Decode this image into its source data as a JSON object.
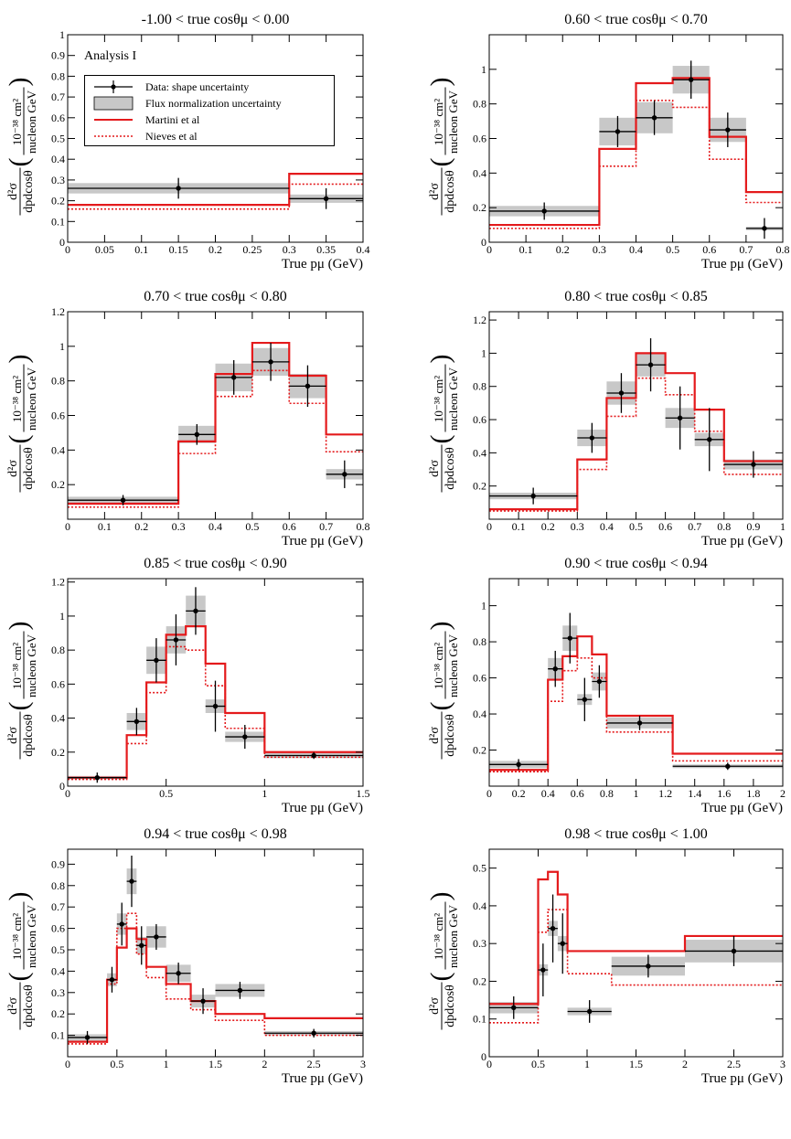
{
  "annotation": "Analysis I",
  "ylabel_numerator": "d²σ",
  "ylabel_denominator": "dpdcosθ",
  "ylabel_unit_top": "10⁻³⁸ cm²",
  "ylabel_unit_bottom": "nucleon GeV",
  "xlabel": "True pμ (GeV)",
  "legend": [
    {
      "label": "Data: shape uncertainty",
      "symbol": "data"
    },
    {
      "label": "Flux normalization uncertainty",
      "symbol": "band"
    },
    {
      "label": "Martini et al",
      "symbol": "solid-red"
    },
    {
      "label": "Nieves et al",
      "symbol": "dashed-red"
    }
  ],
  "colors": {
    "martini": "#e41a1c",
    "nieves": "#e41a1c",
    "band": "#c8c8c8",
    "data": "#000000"
  },
  "chart_data": [
    {
      "type": "line",
      "title": "-1.00 < true cosθμ < 0.00",
      "xlim": [
        0,
        0.4
      ],
      "ylim": [
        0,
        1.0
      ],
      "xticks": [
        0,
        0.05,
        0.1,
        0.15,
        0.2,
        0.25,
        0.3,
        0.35,
        0.4
      ],
      "xticklabels": [
        "0",
        "0.05",
        "0.1",
        "0.15",
        "0.2",
        "0.25",
        "0.3",
        "0.35",
        "0.4"
      ],
      "yticks": [
        0,
        0.1,
        0.2,
        0.3,
        0.4,
        0.5,
        0.6,
        0.7,
        0.8,
        0.9,
        1
      ],
      "yticklabels": [
        "0",
        "0.1",
        "0.2",
        "0.3",
        "0.4",
        "0.5",
        "0.6",
        "0.7",
        "0.8",
        "0.9",
        "1"
      ],
      "bins": [
        0,
        0.3,
        0.4
      ],
      "data": [
        0.26,
        0.21
      ],
      "data_err": [
        0.05,
        0.05
      ],
      "flux_band": [
        0.025,
        0.02
      ],
      "martini": [
        0.18,
        0.33
      ],
      "nieves": [
        0.16,
        0.28
      ]
    },
    {
      "type": "line",
      "title": "0.60 < true cosθμ < 0.70",
      "xlim": [
        0,
        0.8
      ],
      "ylim": [
        0,
        1.2
      ],
      "xticks": [
        0,
        0.1,
        0.2,
        0.3,
        0.4,
        0.5,
        0.6,
        0.7,
        0.8
      ],
      "xticklabels": [
        "0",
        "0.1",
        "0.2",
        "0.3",
        "0.4",
        "0.5",
        "0.6",
        "0.7",
        "0.8"
      ],
      "yticks": [
        0,
        0.2,
        0.4,
        0.6,
        0.8,
        1
      ],
      "yticklabels": [
        "0",
        "0.2",
        "0.4",
        "0.6",
        "0.8",
        "1"
      ],
      "bins": [
        0,
        0.3,
        0.4,
        0.5,
        0.6,
        0.7,
        0.8
      ],
      "data": [
        0.18,
        0.64,
        0.72,
        0.94,
        0.65,
        0.08
      ],
      "data_err": [
        0.05,
        0.09,
        0.1,
        0.11,
        0.1,
        0.06
      ],
      "flux_band": [
        0.03,
        0.08,
        0.09,
        0.08,
        0.07,
        0.01
      ],
      "martini": [
        0.1,
        0.54,
        0.92,
        0.95,
        0.61,
        0.29
      ],
      "nieves": [
        0.08,
        0.44,
        0.82,
        0.78,
        0.48,
        0.23
      ]
    },
    {
      "type": "line",
      "title": "0.70 < true cosθμ < 0.80",
      "xlim": [
        0,
        0.8
      ],
      "ylim": [
        0,
        1.2
      ],
      "xticks": [
        0,
        0.1,
        0.2,
        0.3,
        0.4,
        0.5,
        0.6,
        0.7,
        0.8
      ],
      "xticklabels": [
        "0",
        "0.1",
        "0.2",
        "0.3",
        "0.4",
        "0.5",
        "0.6",
        "0.7",
        "0.8"
      ],
      "yticks": [
        0.2,
        0.4,
        0.6,
        0.8,
        1,
        1.2
      ],
      "yticklabels": [
        "0.2",
        "0.4",
        "0.6",
        "0.8",
        "1",
        "1.2"
      ],
      "bins": [
        0,
        0.3,
        0.4,
        0.5,
        0.6,
        0.7,
        0.8
      ],
      "data": [
        0.11,
        0.49,
        0.82,
        0.91,
        0.77,
        0.26
      ],
      "data_err": [
        0.03,
        0.06,
        0.1,
        0.11,
        0.12,
        0.08
      ],
      "flux_band": [
        0.02,
        0.05,
        0.08,
        0.08,
        0.07,
        0.03
      ],
      "martini": [
        0.09,
        0.45,
        0.84,
        1.02,
        0.83,
        0.49
      ],
      "nieves": [
        0.07,
        0.38,
        0.71,
        0.86,
        0.67,
        0.39
      ]
    },
    {
      "type": "line",
      "title": "0.80 < true cosθμ < 0.85",
      "xlim": [
        0,
        1.0
      ],
      "ylim": [
        0,
        1.25
      ],
      "xticks": [
        0,
        0.1,
        0.2,
        0.3,
        0.4,
        0.5,
        0.6,
        0.7,
        0.8,
        0.9,
        1
      ],
      "xticklabels": [
        "0",
        "0.1",
        "0.2",
        "0.3",
        "0.4",
        "0.5",
        "0.6",
        "0.7",
        "0.8",
        "0.9",
        "1"
      ],
      "yticks": [
        0.2,
        0.4,
        0.6,
        0.8,
        1,
        1.2
      ],
      "yticklabels": [
        "0.2",
        "0.4",
        "0.6",
        "0.8",
        "1",
        "1.2"
      ],
      "bins": [
        0,
        0.3,
        0.4,
        0.5,
        0.6,
        0.7,
        0.8,
        1.0
      ],
      "data": [
        0.14,
        0.49,
        0.76,
        0.93,
        0.61,
        0.48,
        0.33
      ],
      "data_err": [
        0.05,
        0.09,
        0.12,
        0.16,
        0.19,
        0.19,
        0.08
      ],
      "flux_band": [
        0.02,
        0.05,
        0.07,
        0.07,
        0.06,
        0.04,
        0.03
      ],
      "martini": [
        0.06,
        0.36,
        0.73,
        1.0,
        0.88,
        0.66,
        0.35
      ],
      "nieves": [
        0.05,
        0.3,
        0.62,
        0.85,
        0.75,
        0.53,
        0.27
      ]
    },
    {
      "type": "line",
      "title": "0.85 < true cosθμ < 0.90",
      "xlim": [
        0,
        1.5
      ],
      "ylim": [
        0,
        1.22
      ],
      "xticks": [
        0,
        0.5,
        1,
        1.5
      ],
      "xticklabels": [
        "0",
        "0.5",
        "1",
        "1.5"
      ],
      "yticks": [
        0,
        0.2,
        0.4,
        0.6,
        0.8,
        1,
        1.2
      ],
      "yticklabels": [
        "0",
        "0.2",
        "0.4",
        "0.6",
        "0.8",
        "1",
        "1.2"
      ],
      "bins": [
        0,
        0.3,
        0.4,
        0.5,
        0.6,
        0.7,
        0.8,
        1.0,
        1.5
      ],
      "data": [
        0.05,
        0.38,
        0.74,
        0.86,
        1.03,
        0.47,
        0.29,
        0.18
      ],
      "data_err": [
        0.03,
        0.08,
        0.13,
        0.15,
        0.14,
        0.15,
        0.07,
        0.02
      ],
      "flux_band": [
        0.01,
        0.05,
        0.08,
        0.08,
        0.09,
        0.04,
        0.03,
        0.015
      ],
      "martini": [
        0.05,
        0.3,
        0.61,
        0.89,
        0.94,
        0.72,
        0.43,
        0.2
      ],
      "nieves": [
        0.04,
        0.25,
        0.55,
        0.82,
        0.8,
        0.59,
        0.34,
        0.17
      ]
    },
    {
      "type": "line",
      "title": "0.90 < true cosθμ < 0.94",
      "xlim": [
        0,
        2.0
      ],
      "ylim": [
        0,
        1.15
      ],
      "xticks": [
        0,
        0.2,
        0.4,
        0.6,
        0.8,
        1,
        1.2,
        1.4,
        1.6,
        1.8,
        2
      ],
      "xticklabels": [
        "0",
        "0.2",
        "0.4",
        "0.6",
        "0.8",
        "1",
        "1.2",
        "1.4",
        "1.6",
        "1.8",
        "2"
      ],
      "yticks": [
        0.2,
        0.4,
        0.6,
        0.8,
        1
      ],
      "yticklabels": [
        "0.2",
        "0.4",
        "0.6",
        "0.8",
        "1"
      ],
      "bins": [
        0,
        0.4,
        0.5,
        0.6,
        0.7,
        0.8,
        1.25,
        2.0
      ],
      "data": [
        0.12,
        0.65,
        0.82,
        0.48,
        0.58,
        0.35,
        0.11
      ],
      "data_err": [
        0.03,
        0.1,
        0.14,
        0.12,
        0.09,
        0.04,
        0.02
      ],
      "flux_band": [
        0.02,
        0.06,
        0.07,
        0.03,
        0.05,
        0.03,
        0.01
      ],
      "martini": [
        0.09,
        0.59,
        0.72,
        0.83,
        0.73,
        0.39,
        0.18
      ],
      "nieves": [
        0.08,
        0.47,
        0.64,
        0.71,
        0.6,
        0.3,
        0.14
      ]
    },
    {
      "type": "line",
      "title": "0.94 < true cosθμ < 0.98",
      "xlim": [
        0,
        3.0
      ],
      "ylim": [
        0,
        0.97
      ],
      "xticks": [
        0,
        0.5,
        1,
        1.5,
        2,
        2.5,
        3
      ],
      "xticklabels": [
        "0",
        "0.5",
        "1",
        "1.5",
        "2",
        "2.5",
        "3"
      ],
      "yticks": [
        0.1,
        0.2,
        0.3,
        0.4,
        0.5,
        0.6,
        0.7,
        0.8,
        0.9
      ],
      "yticklabels": [
        "0.1",
        "0.2",
        "0.3",
        "0.4",
        "0.5",
        "0.6",
        "0.7",
        "0.8",
        "0.9"
      ],
      "bins": [
        0,
        0.4,
        0.5,
        0.6,
        0.7,
        0.8,
        1.0,
        1.25,
        1.5,
        2.0,
        3.0
      ],
      "data": [
        0.09,
        0.36,
        0.62,
        0.82,
        0.52,
        0.56,
        0.39,
        0.26,
        0.31,
        0.11
      ],
      "data_err": [
        0.03,
        0.06,
        0.1,
        0.12,
        0.09,
        0.06,
        0.05,
        0.06,
        0.04,
        0.02
      ],
      "flux_band": [
        0.015,
        0.03,
        0.05,
        0.06,
        0.04,
        0.05,
        0.04,
        0.03,
        0.03,
        0.01
      ],
      "martini": [
        0.07,
        0.36,
        0.51,
        0.6,
        0.55,
        0.42,
        0.34,
        0.26,
        0.2,
        0.18
      ],
      "nieves": [
        0.06,
        0.34,
        0.6,
        0.67,
        0.48,
        0.37,
        0.27,
        0.22,
        0.17,
        0.1
      ]
    },
    {
      "type": "line",
      "title": "0.98 < true cosθμ < 1.00",
      "xlim": [
        0,
        3.0
      ],
      "ylim": [
        0,
        0.55
      ],
      "xticks": [
        0,
        0.5,
        1,
        1.5,
        2,
        2.5,
        3
      ],
      "xticklabels": [
        "0",
        "0.5",
        "1",
        "1.5",
        "2",
        "2.5",
        "3"
      ],
      "yticks": [
        0,
        0.1,
        0.2,
        0.3,
        0.4,
        0.5
      ],
      "yticklabels": [
        "0",
        "0.1",
        "0.2",
        "0.3",
        "0.4",
        "0.5"
      ],
      "bins": [
        0,
        0.5,
        0.6,
        0.7,
        0.8,
        1.25,
        2.0,
        3.0
      ],
      "data": [
        0.13,
        0.23,
        0.34,
        0.3,
        0.12,
        0.24,
        0.28
      ],
      "data_err": [
        0.03,
        0.07,
        0.09,
        0.08,
        0.03,
        0.03,
        0.04
      ],
      "flux_band": [
        0.015,
        0.015,
        0.02,
        0.02,
        0.01,
        0.025,
        0.03
      ],
      "martini": [
        0.14,
        0.47,
        0.49,
        0.43,
        0.28,
        0.28,
        0.32
      ],
      "nieves": [
        0.09,
        0.33,
        0.39,
        0.39,
        0.22,
        0.19,
        0.19
      ]
    }
  ]
}
